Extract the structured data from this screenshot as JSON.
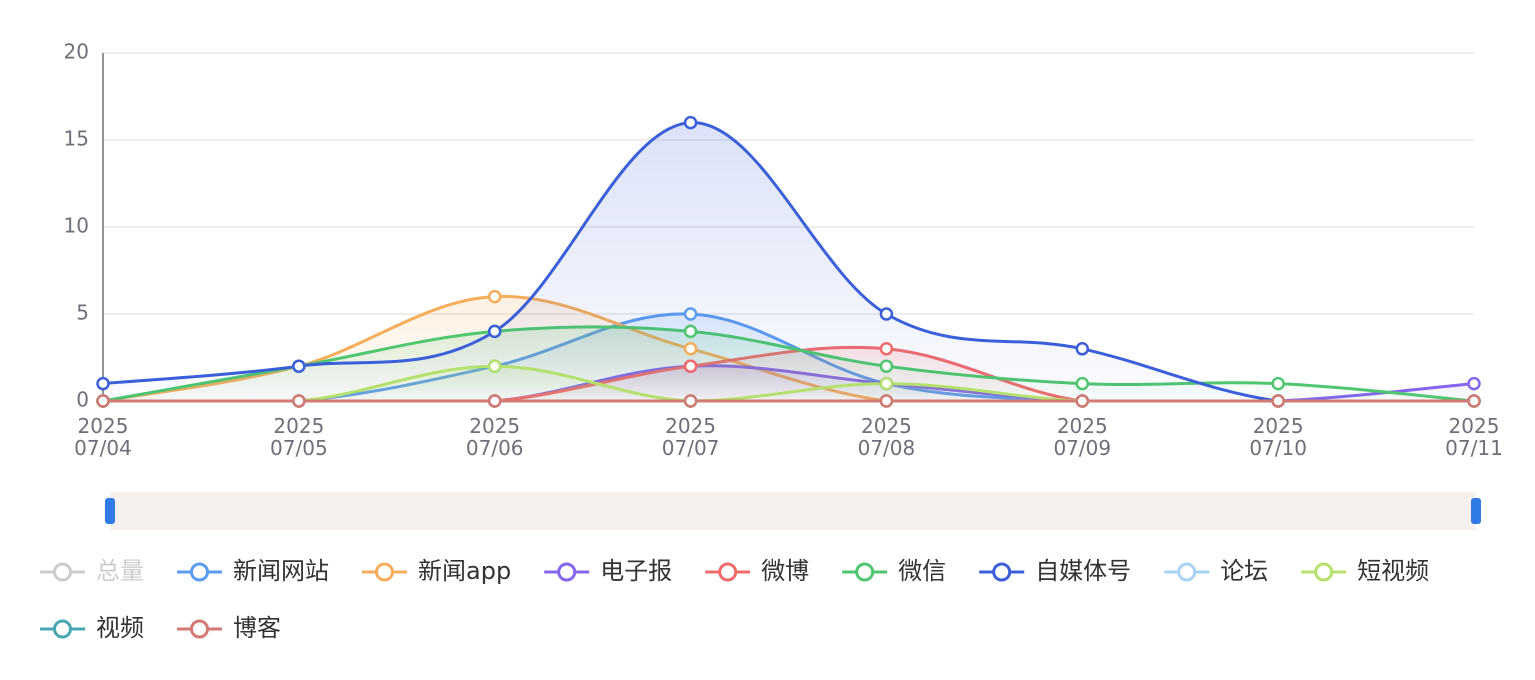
{
  "chart_data": {
    "type": "line",
    "smooth": true,
    "grid": true,
    "area": true,
    "categories": [
      "2025\n07/04",
      "2025\n07/05",
      "2025\n07/06",
      "2025\n07/07",
      "2025\n07/08",
      "2025\n07/09",
      "2025\n07/10",
      "2025\n07/11"
    ],
    "ylim": [
      0,
      20
    ],
    "yticks": [
      0,
      5,
      10,
      15,
      20
    ],
    "legend_position": "bottom",
    "series": [
      {
        "name": "总量",
        "color": "#cccccc",
        "selected": false
      },
      {
        "name": "新闻网站",
        "color": "#5b9cf0",
        "values": [
          0,
          0,
          2,
          5,
          1,
          0,
          0,
          0
        ]
      },
      {
        "name": "新闻app",
        "color": "#f5ad5b",
        "values": [
          0,
          2,
          6,
          3,
          0,
          0,
          0,
          0
        ]
      },
      {
        "name": "电子报",
        "color": "#8466ec",
        "values": [
          0,
          0,
          0,
          2,
          1,
          0,
          0,
          1
        ]
      },
      {
        "name": "微博",
        "color": "#f26b6b",
        "values": [
          0,
          0,
          0,
          2,
          3,
          0,
          0,
          0
        ]
      },
      {
        "name": "微信",
        "color": "#4fc66f",
        "values": [
          0,
          2,
          4,
          4,
          2,
          1,
          1,
          0
        ]
      },
      {
        "name": "自媒体号",
        "color": "#3b5fd9",
        "values": [
          1,
          2,
          4,
          16,
          5,
          3,
          0,
          0
        ]
      },
      {
        "name": "论坛",
        "color": "#a7d3f5",
        "values": [
          0,
          0,
          0,
          0,
          0,
          0,
          0,
          0
        ]
      },
      {
        "name": "短视频",
        "color": "#b4e06d",
        "values": [
          0,
          0,
          2,
          0,
          1,
          0,
          0,
          0
        ]
      },
      {
        "name": "视频",
        "color": "#46a8b0",
        "values": [
          0,
          0,
          0,
          0,
          0,
          0,
          0,
          0
        ]
      },
      {
        "name": "博客",
        "color": "#d27a73",
        "values": [
          0,
          0,
          0,
          0,
          0,
          0,
          0,
          0
        ]
      }
    ]
  }
}
